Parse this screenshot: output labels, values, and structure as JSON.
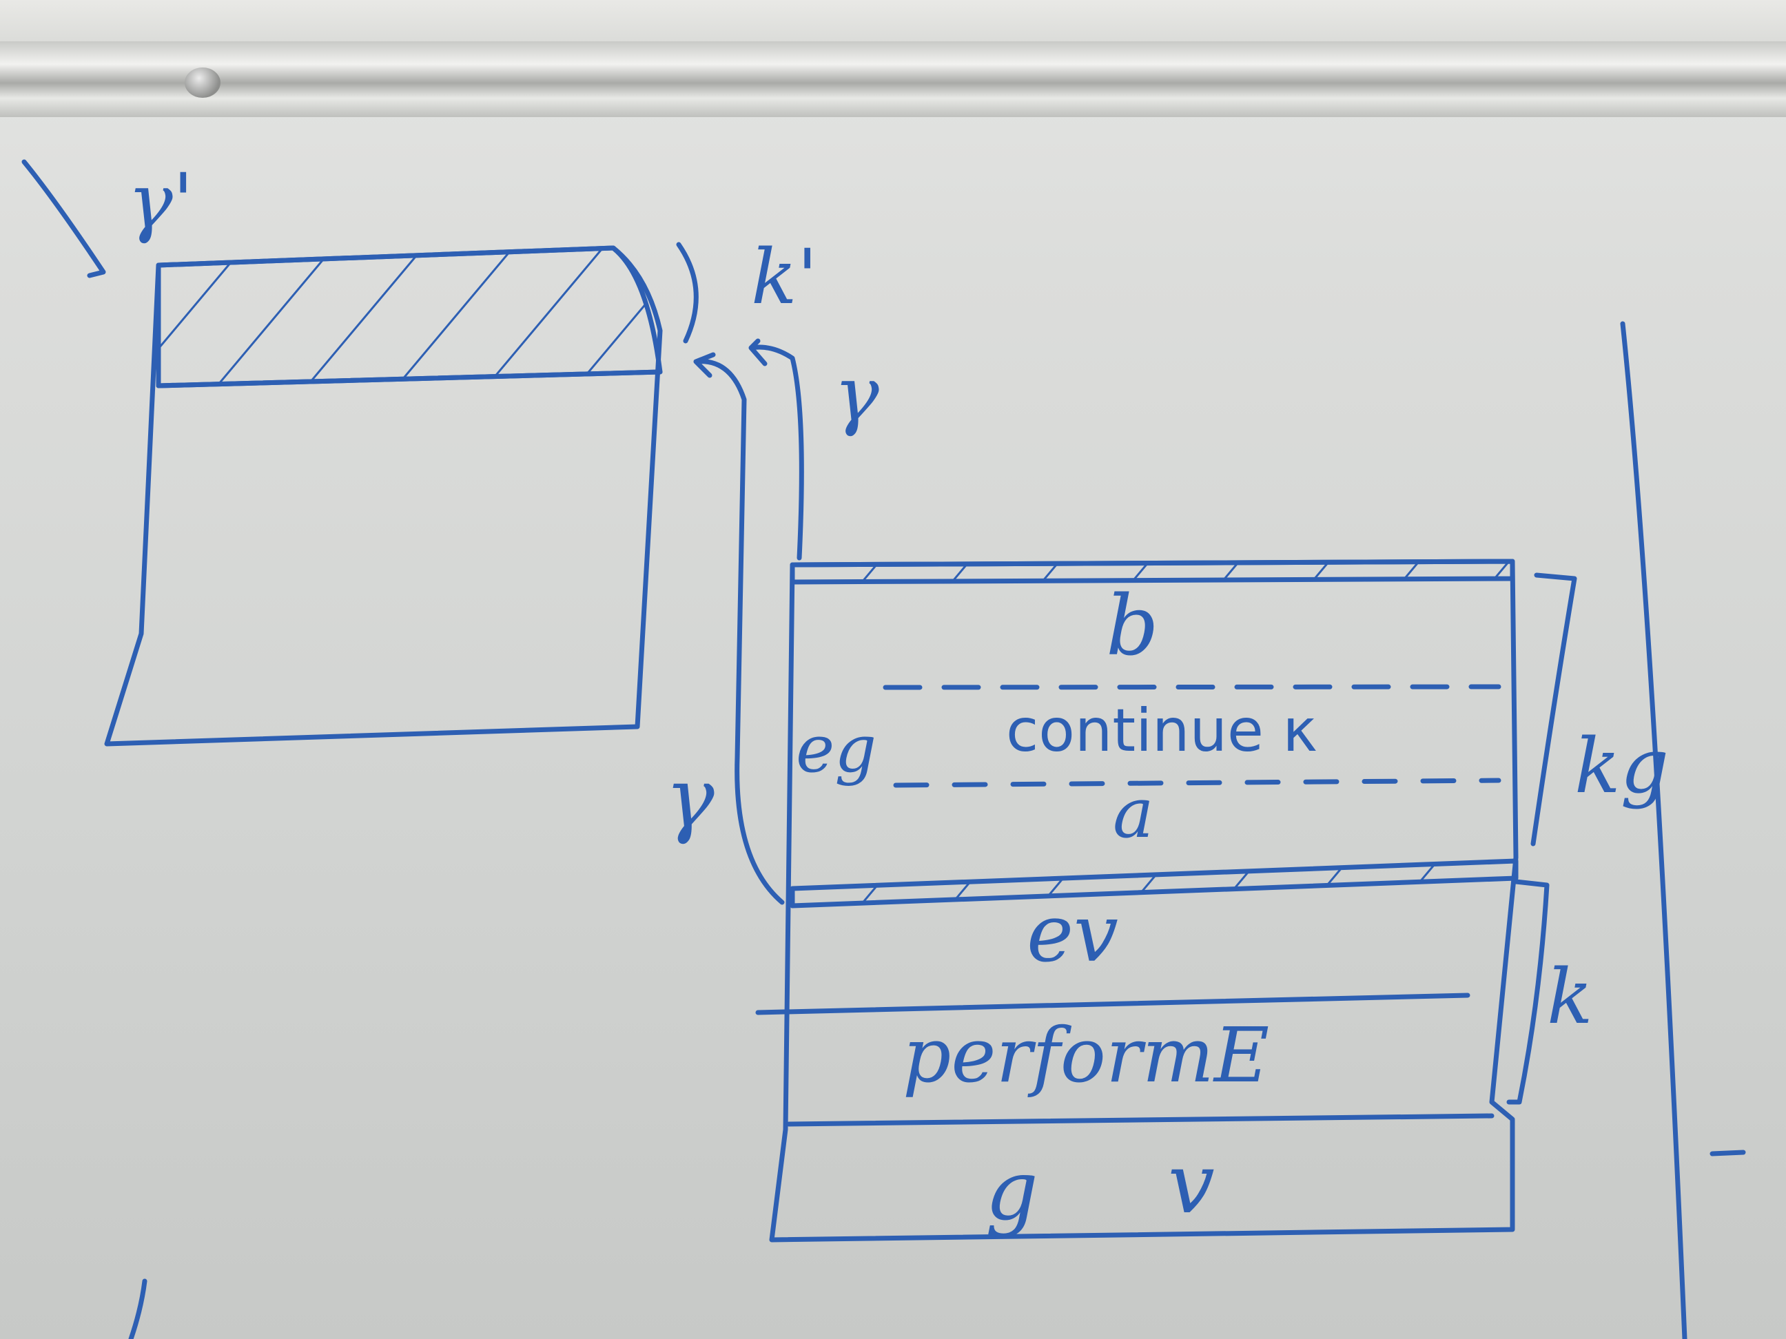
{
  "labels": {
    "gamma_prime": "γ'",
    "k_prime": "k'",
    "gamma_top": "γ",
    "gamma_left": "γ",
    "b": "b",
    "continue_k": "continue κ",
    "eg": "eg",
    "a": "a",
    "k_g": "kg",
    "ev": "ev",
    "performE": "performE",
    "k": "k",
    "g": "g",
    "v": "v"
  },
  "colors": {
    "ink": "#2d5fb3",
    "ink_dark": "#1f3f8a",
    "board": "#d8d9d7"
  }
}
